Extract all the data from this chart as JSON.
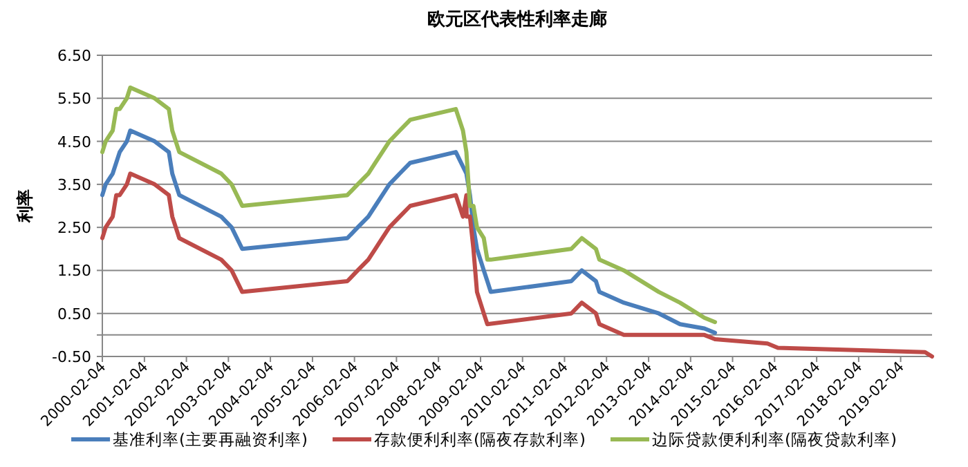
{
  "chart_data": {
    "type": "line",
    "title": "欧元区代表性利率走廊",
    "ylabel": "利率",
    "xlim": [
      "2000-02-04",
      "2019-11-04"
    ],
    "xticks": [
      "2000-02-04",
      "2001-02-04",
      "2002-02-04",
      "2003-02-04",
      "2004-02-04",
      "2005-02-04",
      "2006-02-04",
      "2007-02-04",
      "2008-02-04",
      "2009-02-04",
      "2010-02-04",
      "2011-02-04",
      "2012-02-04",
      "2013-02-04",
      "2014-02-04",
      "2015-02-04",
      "2016-02-04",
      "2017-02-04",
      "2018-02-04",
      "2019-02-04"
    ],
    "ylim": [
      -0.5,
      6.5
    ],
    "yticks": [
      {
        "value": -0.5,
        "label": "-0.50"
      },
      {
        "value": 0,
        "label": null
      },
      {
        "value": 0.5,
        "label": "0.50"
      },
      {
        "value": 1.5,
        "label": "1.50"
      },
      {
        "value": 2.5,
        "label": "2.50"
      },
      {
        "value": 3.5,
        "label": "3.50"
      },
      {
        "value": 4.5,
        "label": "4.50"
      },
      {
        "value": 5.5,
        "label": "5.50"
      },
      {
        "value": 6.5,
        "label": "6.50"
      }
    ],
    "grid": "y",
    "legend": "bottom",
    "series": [
      {
        "name": "基准利率(主要再融资利率)",
        "color": "#4a7ebb",
        "x": [
          "2000-02-04",
          "2000-03-04",
          "2000-05-04",
          "2000-07-04",
          "2000-09-04",
          "2000-10-04",
          "2001-05-04",
          "2001-09-04",
          "2001-10-04",
          "2001-12-04",
          "2002-12-04",
          "2003-03-04",
          "2003-06-04",
          "2005-12-04",
          "2006-03-04",
          "2006-06-04",
          "2006-08-04",
          "2006-10-04",
          "2006-12-04",
          "2007-03-04",
          "2007-06-04",
          "2008-07-04",
          "2008-10-04",
          "2008-11-04",
          "2008-12-04",
          "2009-01-04",
          "2009-03-04",
          "2009-04-04",
          "2009-05-04",
          "2011-04-04",
          "2011-07-04",
          "2011-11-04",
          "2011-12-04",
          "2012-07-04",
          "2013-05-04",
          "2013-11-04",
          "2014-06-04",
          "2014-09-04"
        ],
        "values": [
          3.25,
          3.5,
          3.75,
          4.25,
          4.5,
          4.75,
          4.5,
          4.25,
          3.75,
          3.25,
          2.75,
          2.5,
          2.0,
          2.25,
          2.5,
          2.75,
          3.0,
          3.25,
          3.5,
          3.75,
          4.0,
          4.25,
          3.75,
          3.25,
          2.5,
          2.0,
          1.5,
          1.25,
          1.0,
          1.25,
          1.5,
          1.25,
          1.0,
          0.75,
          0.5,
          0.25,
          0.15,
          0.05
        ]
      },
      {
        "name": "存款便利利率(隔夜存款利率)",
        "color": "#be4b48",
        "x": [
          "2000-02-04",
          "2000-03-04",
          "2000-05-04",
          "2000-06-04",
          "2000-07-04",
          "2000-09-04",
          "2000-10-04",
          "2001-05-04",
          "2001-09-04",
          "2001-10-04",
          "2001-12-04",
          "2002-12-04",
          "2003-03-04",
          "2003-06-04",
          "2005-12-04",
          "2006-03-04",
          "2006-06-04",
          "2006-08-04",
          "2006-10-04",
          "2006-12-04",
          "2007-03-04",
          "2007-06-04",
          "2008-07-04",
          "2008-09-04",
          "2008-10-04",
          "2008-10-06",
          "2008-11-04",
          "2008-12-04",
          "2009-01-04",
          "2009-03-04",
          "2009-04-04",
          "2011-04-04",
          "2011-07-04",
          "2011-11-04",
          "2011-12-04",
          "2012-07-04",
          "2014-06-04",
          "2014-09-04",
          "2015-12-04",
          "2016-03-04",
          "2019-09-04",
          "2019-11-04"
        ],
        "values": [
          2.25,
          2.5,
          2.75,
          3.25,
          3.25,
          3.5,
          3.75,
          3.5,
          3.25,
          2.75,
          2.25,
          1.75,
          1.5,
          1.0,
          1.25,
          1.5,
          1.75,
          2.0,
          2.25,
          2.5,
          2.75,
          3.0,
          3.25,
          2.75,
          3.25,
          2.75,
          2.75,
          2.0,
          1.0,
          0.5,
          0.25,
          0.5,
          0.75,
          0.5,
          0.25,
          0.0,
          0.0,
          -0.1,
          -0.2,
          -0.3,
          -0.4,
          -0.5
        ]
      },
      {
        "name": "边际贷款便利利率(隔夜贷款利率)",
        "color": "#98b954",
        "x": [
          "2000-02-04",
          "2000-03-04",
          "2000-05-04",
          "2000-06-04",
          "2000-07-04",
          "2000-09-04",
          "2000-10-04",
          "2001-05-04",
          "2001-09-04",
          "2001-10-04",
          "2001-12-04",
          "2002-12-04",
          "2003-03-04",
          "2003-06-04",
          "2005-12-04",
          "2006-03-04",
          "2006-06-04",
          "2006-08-04",
          "2006-10-04",
          "2006-12-04",
          "2007-03-04",
          "2007-06-04",
          "2008-07-04",
          "2008-09-04",
          "2008-10-04",
          "2008-11-04",
          "2008-12-04",
          "2009-01-04",
          "2009-03-04",
          "2009-04-04",
          "2009-05-04",
          "2011-04-04",
          "2011-07-04",
          "2011-11-04",
          "2011-12-04",
          "2012-07-04",
          "2013-05-04",
          "2013-11-04",
          "2014-06-04",
          "2014-09-04"
        ],
        "values": [
          4.25,
          4.5,
          4.75,
          5.25,
          5.25,
          5.5,
          5.75,
          5.5,
          5.25,
          4.75,
          4.25,
          3.75,
          3.5,
          3.0,
          3.25,
          3.5,
          3.75,
          4.0,
          4.25,
          4.5,
          4.75,
          5.0,
          5.25,
          4.75,
          4.25,
          3.0,
          3.0,
          2.5,
          2.25,
          1.75,
          1.75,
          2.0,
          2.25,
          2.0,
          1.75,
          1.5,
          1.0,
          0.75,
          0.4,
          0.3
        ]
      }
    ]
  }
}
